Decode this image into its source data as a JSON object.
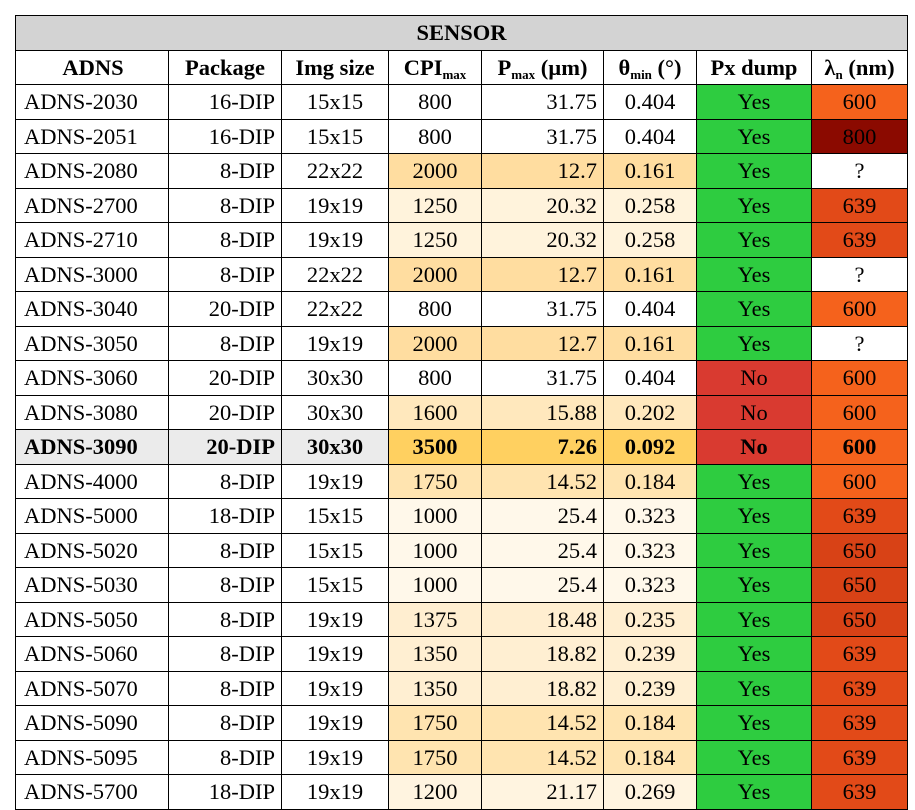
{
  "title": "SENSOR",
  "headers": {
    "adns": "ADNS",
    "package": "Package",
    "img_size": "Img size",
    "cpi_main": "CPI",
    "cpi_sub": "max",
    "p_main": "P",
    "p_sub": "max",
    "p_unit": " (µm)",
    "theta_main": "θ",
    "theta_sub": "min",
    "theta_unit": " (°)",
    "px_dump": "Px dump",
    "lambda_main": "λ",
    "lambda_sub": "n",
    "lambda_unit": " (nm)"
  },
  "highlight_row": "ADNS-3090",
  "rows": [
    {
      "adns": "ADNS-2030",
      "package": "16-DIP",
      "img_size": "15x15",
      "cpi": "800",
      "p_max": "31.75",
      "theta_min": "0.404",
      "px_dump": "Yes",
      "lambda": "600"
    },
    {
      "adns": "ADNS-2051",
      "package": "16-DIP",
      "img_size": "15x15",
      "cpi": "800",
      "p_max": "31.75",
      "theta_min": "0.404",
      "px_dump": "Yes",
      "lambda": "800"
    },
    {
      "adns": "ADNS-2080",
      "package": "8-DIP",
      "img_size": "22x22",
      "cpi": "2000",
      "p_max": "12.7",
      "theta_min": "0.161",
      "px_dump": "Yes",
      "lambda": "?"
    },
    {
      "adns": "ADNS-2700",
      "package": "8-DIP",
      "img_size": "19x19",
      "cpi": "1250",
      "p_max": "20.32",
      "theta_min": "0.258",
      "px_dump": "Yes",
      "lambda": "639"
    },
    {
      "adns": "ADNS-2710",
      "package": "8-DIP",
      "img_size": "19x19",
      "cpi": "1250",
      "p_max": "20.32",
      "theta_min": "0.258",
      "px_dump": "Yes",
      "lambda": "639"
    },
    {
      "adns": "ADNS-3000",
      "package": "8-DIP",
      "img_size": "22x22",
      "cpi": "2000",
      "p_max": "12.7",
      "theta_min": "0.161",
      "px_dump": "Yes",
      "lambda": "?"
    },
    {
      "adns": "ADNS-3040",
      "package": "20-DIP",
      "img_size": "22x22",
      "cpi": "800",
      "p_max": "31.75",
      "theta_min": "0.404",
      "px_dump": "Yes",
      "lambda": "600"
    },
    {
      "adns": "ADNS-3050",
      "package": "8-DIP",
      "img_size": "19x19",
      "cpi": "2000",
      "p_max": "12.7",
      "theta_min": "0.161",
      "px_dump": "Yes",
      "lambda": "?"
    },
    {
      "adns": "ADNS-3060",
      "package": "20-DIP",
      "img_size": "30x30",
      "cpi": "800",
      "p_max": "31.75",
      "theta_min": "0.404",
      "px_dump": "No",
      "lambda": "600"
    },
    {
      "adns": "ADNS-3080",
      "package": "20-DIP",
      "img_size": "30x30",
      "cpi": "1600",
      "p_max": "15.88",
      "theta_min": "0.202",
      "px_dump": "No",
      "lambda": "600"
    },
    {
      "adns": "ADNS-3090",
      "package": "20-DIP",
      "img_size": "30x30",
      "cpi": "3500",
      "p_max": "7.26",
      "theta_min": "0.092",
      "px_dump": "No",
      "lambda": "600"
    },
    {
      "adns": "ADNS-4000",
      "package": "8-DIP",
      "img_size": "19x19",
      "cpi": "1750",
      "p_max": "14.52",
      "theta_min": "0.184",
      "px_dump": "Yes",
      "lambda": "600"
    },
    {
      "adns": "ADNS-5000",
      "package": "18-DIP",
      "img_size": "15x15",
      "cpi": "1000",
      "p_max": "25.4",
      "theta_min": "0.323",
      "px_dump": "Yes",
      "lambda": "639"
    },
    {
      "adns": "ADNS-5020",
      "package": "8-DIP",
      "img_size": "15x15",
      "cpi": "1000",
      "p_max": "25.4",
      "theta_min": "0.323",
      "px_dump": "Yes",
      "lambda": "650"
    },
    {
      "adns": "ADNS-5030",
      "package": "8-DIP",
      "img_size": "15x15",
      "cpi": "1000",
      "p_max": "25.4",
      "theta_min": "0.323",
      "px_dump": "Yes",
      "lambda": "650"
    },
    {
      "adns": "ADNS-5050",
      "package": "8-DIP",
      "img_size": "19x19",
      "cpi": "1375",
      "p_max": "18.48",
      "theta_min": "0.235",
      "px_dump": "Yes",
      "lambda": "650"
    },
    {
      "adns": "ADNS-5060",
      "package": "8-DIP",
      "img_size": "19x19",
      "cpi": "1350",
      "p_max": "18.82",
      "theta_min": "0.239",
      "px_dump": "Yes",
      "lambda": "639"
    },
    {
      "adns": "ADNS-5070",
      "package": "8-DIP",
      "img_size": "19x19",
      "cpi": "1350",
      "p_max": "18.82",
      "theta_min": "0.239",
      "px_dump": "Yes",
      "lambda": "639"
    },
    {
      "adns": "ADNS-5090",
      "package": "8-DIP",
      "img_size": "19x19",
      "cpi": "1750",
      "p_max": "14.52",
      "theta_min": "0.184",
      "px_dump": "Yes",
      "lambda": "639"
    },
    {
      "adns": "ADNS-5095",
      "package": "8-DIP",
      "img_size": "19x19",
      "cpi": "1750",
      "p_max": "14.52",
      "theta_min": "0.184",
      "px_dump": "Yes",
      "lambda": "639"
    },
    {
      "adns": "ADNS-5700",
      "package": "18-DIP",
      "img_size": "19x19",
      "cpi": "1200",
      "p_max": "21.17",
      "theta_min": "0.269",
      "px_dump": "Yes",
      "lambda": "639"
    }
  ],
  "colors": {
    "title_bg": "#d3d3d3",
    "highlight_bg": "#ebebeb",
    "yes_bg": "#2ecc40",
    "no_bg": "#d93a30",
    "heat_scale": {
      "800": "#ffffff",
      "1000": "#fff8ea",
      "1200": "#fff4e0",
      "1250": "#fff3dc",
      "1350": "#ffefd2",
      "1375": "#ffeed0",
      "1600": "#ffe8bd",
      "1750": "#ffe4b0",
      "2000": "#ffdda0",
      "3500": "#ffd060"
    },
    "lambda_scale": {
      "?": "#ffffff",
      "600": "#f5621c",
      "639": "#e24a18",
      "650": "#d84216",
      "800": "#8b0a00"
    }
  }
}
